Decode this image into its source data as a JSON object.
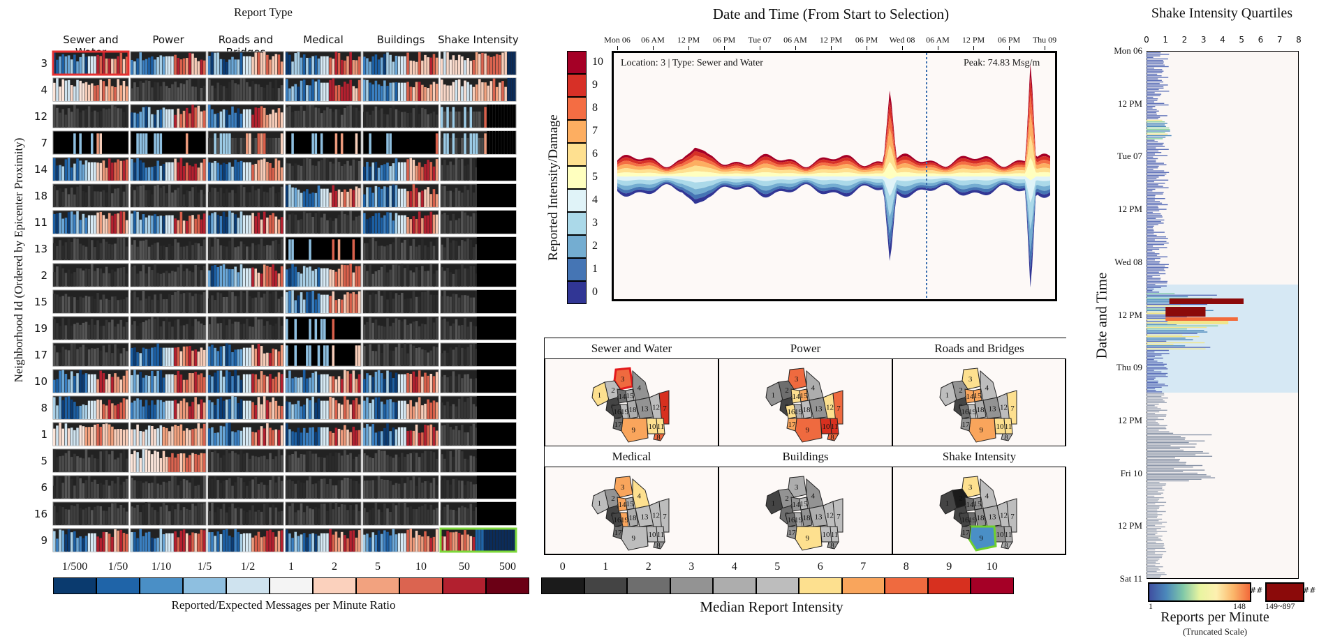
{
  "left": {
    "title": "Report Type",
    "types": [
      "Sewer and Water",
      "Power",
      "Roads and Bridges",
      "Medical",
      "Buildings",
      "Shake Intensity"
    ],
    "ylabel": "Neighborhood Id (Ordered by Epicenter Proximity)",
    "rows": [
      "3",
      "4",
      "12",
      "7",
      "14",
      "18",
      "11",
      "13",
      "2",
      "15",
      "19",
      "17",
      "10",
      "8",
      "1",
      "5",
      "6",
      "16",
      "9"
    ],
    "legend_ticks": [
      "1/500",
      "1/50",
      "1/10",
      "1/5",
      "1/2",
      "1",
      "2",
      "5",
      "10",
      "50",
      "500"
    ],
    "legend_colors": [
      "#0a3a6e",
      "#1f64a8",
      "#4a8fc6",
      "#8ebfe0",
      "#cfe3ef",
      "#f4f4f4",
      "#fbd1bd",
      "#f2a27f",
      "#db6450",
      "#b2202f",
      "#6b0015"
    ],
    "legend_title": "Reported/Expected Messages per Minute Ratio",
    "selected_cell": {
      "row": "3",
      "type": "Sewer and Water",
      "color": "#e53030"
    },
    "highlight_cell": {
      "row": "9",
      "type": "Shake Intensity",
      "color": "#7dd83a"
    }
  },
  "stream": {
    "title": "Date and Time (From Start to Selection)",
    "xticks": [
      "Mon 06",
      "06 AM",
      "12 PM",
      "06 PM",
      "Tue 07",
      "06 AM",
      "12 PM",
      "06 PM",
      "Wed 08",
      "06 AM",
      "12 PM",
      "06 PM",
      "Thu 09"
    ],
    "ylabel": "Reported Intensity/Damage",
    "scale": [
      "10",
      "9",
      "8",
      "7",
      "6",
      "5",
      "4",
      "3",
      "2",
      "1",
      "0"
    ],
    "scale_colors": [
      "#a50026",
      "#d73027",
      "#f46d43",
      "#fdae61",
      "#fee090",
      "#ffffbf",
      "#e0f3f8",
      "#abd9e9",
      "#74add1",
      "#4575b4",
      "#313695"
    ],
    "location_label": "Location: 3 | Type: Sewer and Water",
    "peak_label": "Peak: 74.83 Msg/m"
  },
  "maps": {
    "titles": [
      "Sewer and Water",
      "Power",
      "Roads and Bridges",
      "Medical",
      "Buildings",
      "Shake Intensity"
    ],
    "region_labels": [
      "1",
      "2",
      "3",
      "4",
      "6",
      "9",
      "10",
      "11",
      "12",
      "13",
      "14",
      "15",
      "16",
      "17",
      "18",
      "19",
      "7",
      "8"
    ],
    "legend_ticks": [
      "0",
      "1",
      "2",
      "3",
      "4",
      "5",
      "6",
      "7",
      "8",
      "9",
      "10"
    ],
    "legend_colors": [
      "#1b1b1b",
      "#444444",
      "#6e6e6e",
      "#939393",
      "#adadad",
      "#bdbdbd",
      "#fde08f",
      "#f9a55c",
      "#ef6a3f",
      "#d7301f",
      "#a50026"
    ],
    "legend_title": "Median Report Intensity"
  },
  "right": {
    "title": "Shake Intensity Quartiles",
    "xticks": [
      "0",
      "1",
      "2",
      "3",
      "4",
      "5",
      "6",
      "7",
      "8"
    ],
    "ylabel": "Date and Time",
    "yticks": [
      "Mon 06",
      "12 PM",
      "Tue 07",
      "12 PM",
      "Wed 08",
      "12 PM",
      "Thu 09",
      "12 PM",
      "Fri 10",
      "12 PM",
      "Sat 11"
    ],
    "legend_min": "1",
    "legend_max": "148",
    "legend_top": "149~897",
    "legend_hash": "##",
    "legend_hash2": "##",
    "legend_title": "Reports per Minute",
    "legend_subtitle": "(Truncated Scale)"
  },
  "chart_data": [
    {
      "type": "heatmap",
      "title": "Report Type",
      "ylabel": "Neighborhood Id (Ordered by Epicenter Proximity)",
      "columns": [
        "Sewer and Water",
        "Power",
        "Roads and Bridges",
        "Medical",
        "Buildings",
        "Shake Intensity"
      ],
      "rows": [
        "3",
        "4",
        "12",
        "7",
        "14",
        "18",
        "11",
        "13",
        "2",
        "15",
        "19",
        "17",
        "10",
        "8",
        "1",
        "5",
        "6",
        "16",
        "9"
      ]
    },
    {
      "type": "area",
      "title": "Date and Time (From Start to Selection)",
      "ylabel": "Reported Intensity/Damage",
      "x": [
        "Mon 06",
        "06 AM",
        "12 PM",
        "06 PM",
        "Tue 07",
        "06 AM",
        "12 PM",
        "06 PM",
        "Wed 08",
        "06 AM",
        "12 PM",
        "06 PM",
        "Thu 09"
      ],
      "peak": 74.83
    },
    {
      "type": "bar",
      "title": "Shake Intensity Quartiles",
      "ylabel": "Date and Time",
      "xlim": [
        0,
        8
      ]
    }
  ]
}
